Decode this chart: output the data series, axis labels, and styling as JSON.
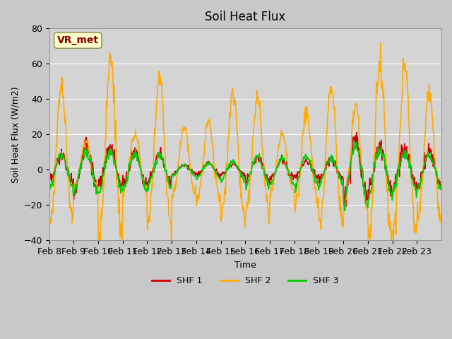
{
  "title": "Soil Heat Flux",
  "ylabel": "Soil Heat Flux (W/m2)",
  "xlabel": "Time",
  "ylim": [
    -40,
    80
  ],
  "fig_bg_color": "#c8c8c8",
  "inner_bg_color": "#d4d4d4",
  "legend_labels": [
    "SHF 1",
    "SHF 2",
    "SHF 3"
  ],
  "vr_met_box_color": "#ffffcc",
  "vr_met_text_color": "#880000",
  "xtick_labels": [
    "Feb 8",
    "Feb 9",
    "Feb 10",
    "Feb 11",
    "Feb 12",
    "Feb 13",
    "Feb 14",
    "Feb 15",
    "Feb 16",
    "Feb 17",
    "Feb 18",
    "Feb 19",
    "Feb 20",
    "Feb 21",
    "Feb 22",
    "Feb 23"
  ],
  "shf1_color": "#cc0000",
  "shf2_color": "#ffaa00",
  "shf3_color": "#00cc00",
  "linewidth": 1.2,
  "n_days": 16,
  "pts_per_day": 48,
  "yticks": [
    -40,
    -20,
    0,
    20,
    40,
    60,
    80
  ],
  "shf2_scales": [
    1.2,
    0.4,
    1.6,
    0.5,
    1.3,
    0.6,
    0.7,
    1.1,
    1.0,
    0.5,
    0.8,
    1.2,
    0.9,
    1.6,
    1.5,
    1.1
  ],
  "shf1_scales": [
    0.8,
    1.5,
    1.2,
    1.0,
    0.9,
    0.3,
    0.4,
    0.3,
    0.7,
    0.6,
    0.5,
    0.6,
    2.0,
    1.3,
    1.2,
    1.1
  ],
  "shf3_scales": [
    0.9,
    1.1,
    1.1,
    1.0,
    0.9,
    0.3,
    0.4,
    0.5,
    0.8,
    0.7,
    0.8,
    0.7,
    1.5,
    1.3,
    1.0,
    0.9
  ]
}
